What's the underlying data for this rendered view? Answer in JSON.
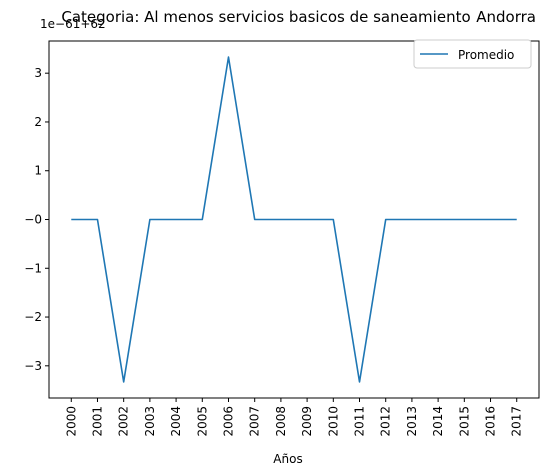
{
  "chart_data": {
    "type": "line",
    "title": "Categoria: Al menos servicios basicos de saneamiento",
    "title_right": "Andorra",
    "offset_text": "1e−61+62",
    "xlabel": "Años",
    "ylabel": "",
    "x": [
      2000,
      2001,
      2002,
      2003,
      2004,
      2005,
      2006,
      2007,
      2008,
      2009,
      2010,
      2011,
      2012,
      2013,
      2014,
      2015,
      2016,
      2017
    ],
    "x_tick_labels": [
      "2000",
      "2001",
      "2002",
      "2003",
      "2004",
      "2005",
      "2006",
      "2007",
      "2008",
      "2009",
      "2010",
      "2011",
      "2012",
      "2013",
      "2014",
      "2015",
      "2016",
      "2017"
    ],
    "y_ticks": [
      -3,
      -2,
      -1,
      0,
      1,
      2,
      3
    ],
    "y_tick_labels": [
      "−3",
      "−2",
      "−1",
      "−0",
      "1",
      "2",
      "3"
    ],
    "ylim": [
      -3.66,
      3.66
    ],
    "grid": false,
    "legend_position": "upper right",
    "series": [
      {
        "name": "Promedio",
        "color": "#1f77b4",
        "values": [
          0,
          0,
          -3.33,
          0,
          0,
          0,
          3.33,
          0,
          0,
          0,
          0,
          -3.33,
          0,
          0,
          0,
          0,
          0,
          0
        ]
      }
    ]
  }
}
